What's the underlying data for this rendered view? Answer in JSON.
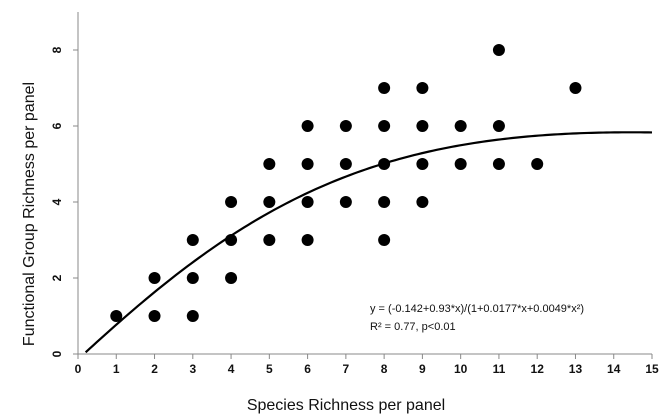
{
  "chart_data": {
    "type": "scatter",
    "xlabel": "Species Richness per panel",
    "ylabel": "Functional Group Richness per panel",
    "xlim": [
      0,
      15
    ],
    "ylim": [
      0,
      9
    ],
    "x_ticks": [
      "0",
      "1",
      "2",
      "3",
      "4",
      "5",
      "6",
      "7",
      "8",
      "9",
      "10",
      "11",
      "12",
      "13",
      "14",
      "15"
    ],
    "y_ticks": [
      "0",
      "2",
      "4",
      "6",
      "8"
    ],
    "grid": false,
    "points": [
      {
        "x": 1,
        "y": 1
      },
      {
        "x": 2,
        "y": 1
      },
      {
        "x": 2,
        "y": 2
      },
      {
        "x": 3,
        "y": 1
      },
      {
        "x": 3,
        "y": 2
      },
      {
        "x": 3,
        "y": 3
      },
      {
        "x": 4,
        "y": 2
      },
      {
        "x": 4,
        "y": 3
      },
      {
        "x": 4,
        "y": 4
      },
      {
        "x": 5,
        "y": 3
      },
      {
        "x": 5,
        "y": 4
      },
      {
        "x": 5,
        "y": 5
      },
      {
        "x": 6,
        "y": 3
      },
      {
        "x": 6,
        "y": 4
      },
      {
        "x": 6,
        "y": 5
      },
      {
        "x": 6,
        "y": 6
      },
      {
        "x": 7,
        "y": 4
      },
      {
        "x": 7,
        "y": 5
      },
      {
        "x": 7,
        "y": 6
      },
      {
        "x": 8,
        "y": 3
      },
      {
        "x": 8,
        "y": 4
      },
      {
        "x": 8,
        "y": 5
      },
      {
        "x": 8,
        "y": 6
      },
      {
        "x": 8,
        "y": 7
      },
      {
        "x": 9,
        "y": 4
      },
      {
        "x": 9,
        "y": 5
      },
      {
        "x": 9,
        "y": 6
      },
      {
        "x": 9,
        "y": 7
      },
      {
        "x": 10,
        "y": 5
      },
      {
        "x": 10,
        "y": 6
      },
      {
        "x": 11,
        "y": 5
      },
      {
        "x": 11,
        "y": 6
      },
      {
        "x": 11,
        "y": 8
      },
      {
        "x": 12,
        "y": 5
      },
      {
        "x": 13,
        "y": 7
      }
    ],
    "fit": {
      "a": -0.142,
      "b": 0.93,
      "c": 0.0177,
      "d": 0.0049,
      "x_range": [
        0.2,
        15
      ]
    },
    "annotation_equation": "y = (-0.142+0.93*x)/(1+0.0177*x+0.0049*x²)",
    "annotation_stats": "R² = 0.77, p<0.01",
    "colors": {
      "points": "#000000",
      "curve": "#000000",
      "axis": "#888888"
    }
  }
}
